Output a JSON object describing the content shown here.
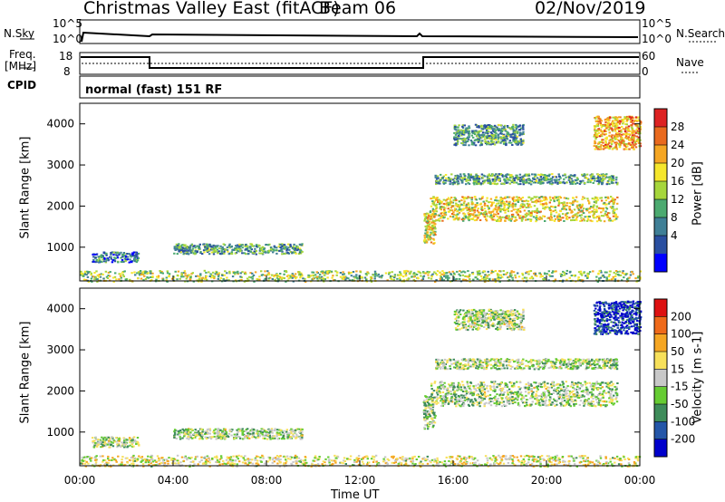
{
  "header": {
    "title": "Christmas Valley East (fitACF)",
    "beam": "Beam 06",
    "date": "02/Nov/2019"
  },
  "sky_panel": {
    "left_label": "N.Sky",
    "right_label": "N.Search",
    "left_ticks": [
      "10^5",
      "10^0"
    ],
    "right_ticks": [
      "10^5",
      "10^0"
    ]
  },
  "freq_panel": {
    "left_label_1": "Freq.",
    "left_label_2": "[MHz]",
    "left_ticks": [
      "18",
      "8"
    ],
    "right_label": "Nave",
    "right_ticks": [
      "60",
      "0"
    ]
  },
  "cpid_panel": {
    "label": "CPID",
    "text": "normal (fast) 151 RF"
  },
  "chart_data": [
    {
      "type": "heatmap",
      "name": "power",
      "ylabel": "Slant Range [km]",
      "ylim": [
        180,
        4500
      ],
      "yticks": [
        "1000",
        "2000",
        "3000",
        "4000"
      ],
      "colorbar_label": "Power [dB]",
      "colorbar_ticks": [
        "28",
        "24",
        "20",
        "16",
        "12",
        "8",
        "4"
      ],
      "colors": [
        "#0000ff",
        "#2a4fa0",
        "#3f7f96",
        "#4caa70",
        "#a6d63c",
        "#f5e62c",
        "#f5a623",
        "#e96a1e",
        "#dd2222"
      ],
      "regions": [
        {
          "t0": 0.0,
          "t1": 24.0,
          "r0": 180,
          "r1": 450,
          "level": 0.5
        },
        {
          "t0": 4.0,
          "t1": 9.5,
          "r0": 850,
          "r1": 1100,
          "level": 0.35
        },
        {
          "t0": 0.5,
          "t1": 2.5,
          "r0": 650,
          "r1": 900,
          "level": 0.25
        },
        {
          "t0": 14.7,
          "t1": 15.2,
          "r0": 1100,
          "r1": 1900,
          "level": 0.6
        },
        {
          "t0": 15.0,
          "t1": 23.0,
          "r0": 1650,
          "r1": 2250,
          "level": 0.6
        },
        {
          "t0": 15.2,
          "t1": 23.0,
          "r0": 2550,
          "r1": 2800,
          "level": 0.35
        },
        {
          "t0": 16.0,
          "t1": 19.0,
          "r0": 3500,
          "r1": 4000,
          "level": 0.35
        },
        {
          "t0": 22.0,
          "t1": 24.0,
          "r0": 3400,
          "r1": 4200,
          "level": 0.7
        }
      ]
    },
    {
      "type": "heatmap",
      "name": "velocity",
      "ylabel": "Slant Range [km]",
      "ylim": [
        180,
        4500
      ],
      "yticks": [
        "1000",
        "2000",
        "3000",
        "4000"
      ],
      "colorbar_label": "Velocity [m s-1]",
      "colorbar_ticks": [
        "200",
        "100",
        "50",
        "15",
        "-15",
        "-50",
        "-100",
        "-200"
      ],
      "colors": [
        "#0000cc",
        "#2456a8",
        "#3e8c5a",
        "#66cc33",
        "#c8c8c8",
        "#f7e05a",
        "#f5a623",
        "#ef6a1a",
        "#dd1111"
      ],
      "regions": [
        {
          "t0": 0.0,
          "t1": 24.0,
          "r0": 180,
          "r1": 450,
          "level": 0.55
        },
        {
          "t0": 4.0,
          "t1": 9.5,
          "r0": 850,
          "r1": 1100,
          "level": 0.45
        },
        {
          "t0": 0.5,
          "t1": 2.5,
          "r0": 650,
          "r1": 900,
          "level": 0.45
        },
        {
          "t0": 14.7,
          "t1": 15.2,
          "r0": 1100,
          "r1": 1900,
          "level": 0.45
        },
        {
          "t0": 15.0,
          "t1": 23.0,
          "r0": 1650,
          "r1": 2250,
          "level": 0.45
        },
        {
          "t0": 15.2,
          "t1": 23.0,
          "r0": 2550,
          "r1": 2800,
          "level": 0.45
        },
        {
          "t0": 16.0,
          "t1": 19.0,
          "r0": 3500,
          "r1": 4000,
          "level": 0.45
        },
        {
          "t0": 22.0,
          "t1": 24.0,
          "r0": 3400,
          "r1": 4200,
          "level": 0.1
        }
      ]
    }
  ],
  "x_axis": {
    "label": "Time UT",
    "ticks": [
      "00:00",
      "04:00",
      "08:00",
      "12:00",
      "16:00",
      "20:00",
      "00:00"
    ]
  }
}
